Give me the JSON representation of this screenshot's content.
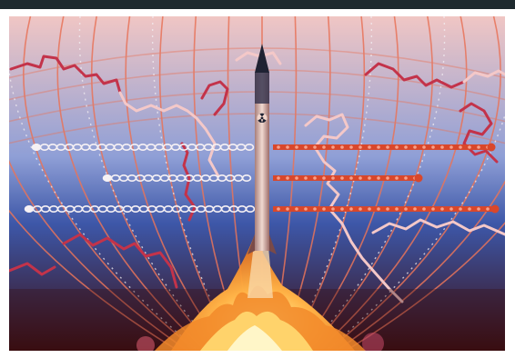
{
  "illustration": {
    "subject": "missile-launch-over-world-map",
    "colors": {
      "top_bar": "#1e2a2e",
      "sky_top": "#f0c6c4",
      "sky_mid": "#8f9fd6",
      "horizon_blue": "#3d57a8",
      "ground_dark": "#3a0d10",
      "grid_lines": "#e8745a",
      "dotted_meridians": "#f3eef2",
      "missile_body": "#d9b8b0",
      "missile_nose": "#1f2233",
      "exhaust_core": "#fff6a0",
      "exhaust_outer": "#f07a1e",
      "orbit_red": "#d9472b",
      "orbit_white": "#f6f1f4",
      "coast_outline": "#c3334a"
    },
    "icons": [
      "radiation-symbol"
    ]
  }
}
